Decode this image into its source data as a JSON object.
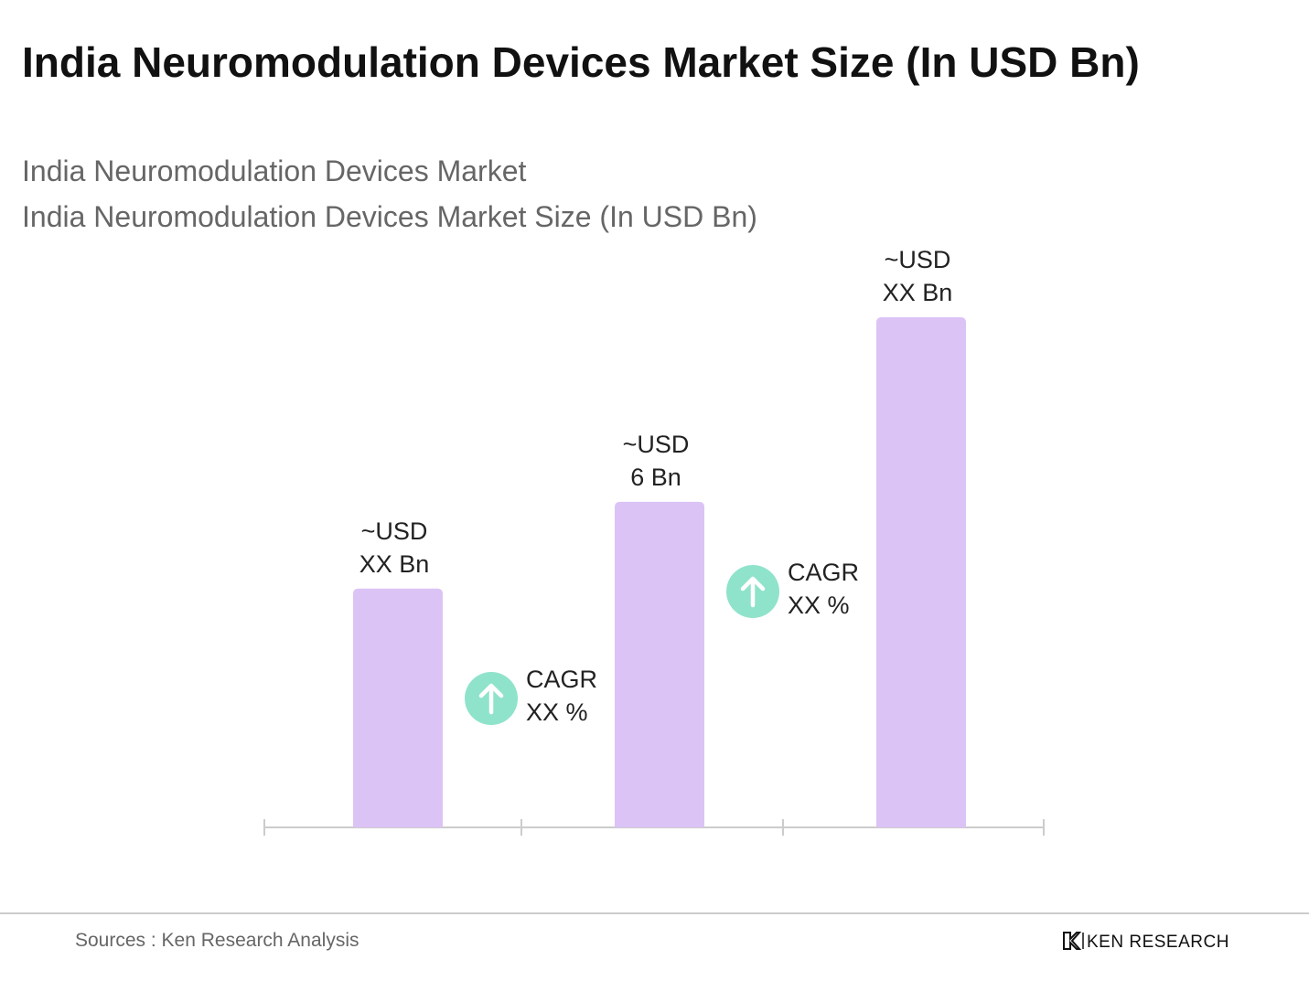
{
  "chart_data": {
    "type": "bar",
    "title": "India Neuromodulation Devices Market Size (In USD Bn)",
    "subtitle": [
      "India Neuromodulation Devices Market",
      "India Neuromodulation Devices Market Size (In USD Bn)"
    ],
    "values": [
      4.4,
      6,
      9.4
    ],
    "value_labels": [
      [
        "~USD",
        "XX Bn"
      ],
      [
        "~USD",
        "6 Bn"
      ],
      [
        "~USD",
        "XX Bn"
      ]
    ],
    "color": "#dcc3f6",
    "annotations": [
      [
        "CAGR",
        "XX %"
      ],
      [
        "CAGR",
        "XX %"
      ]
    ],
    "annotation_color": "#8fe3cb",
    "source": "Sources : Ken Research Analysis",
    "brand": "KEN RESEARCH"
  }
}
